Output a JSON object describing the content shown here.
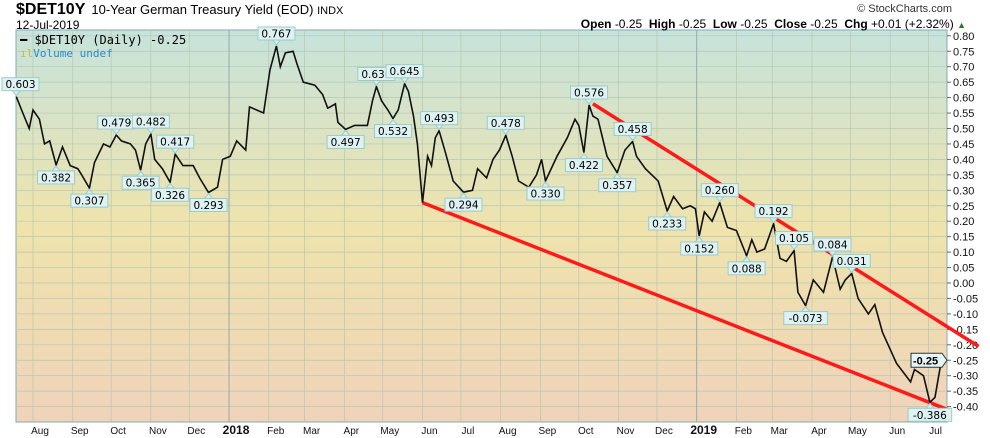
{
  "header": {
    "symbol": "$DET10Y",
    "description": "10-Year German Treasury Yield (EOD)",
    "exchange": "INDX",
    "date": "12-Jul-2019",
    "copyright": "© StockCharts.com",
    "open_label": "Open",
    "open": "-0.25",
    "high_label": "High",
    "high": "-0.25",
    "low_label": "Low",
    "low": "-0.25",
    "close_label": "Close",
    "close": "-0.25",
    "chg_label": "Chg",
    "chg": "+0.01 (+2.32%)",
    "chg_icon": "up-triangle-icon"
  },
  "legend": {
    "series": "$DET10Y (Daily) -0.25",
    "volume": "Volume undef"
  },
  "chart_data": {
    "type": "line",
    "title": "$DET10Y 10-Year German Treasury Yield (EOD)",
    "x_unit": "days since 2017-08-01",
    "xlim": [
      -13,
      713
    ],
    "ylim": [
      -0.42,
      0.82
    ],
    "y_ticks": [
      "0.80",
      "0.75",
      "0.70",
      "0.65",
      "0.60",
      "0.55",
      "0.50",
      "0.45",
      "0.40",
      "0.35",
      "0.30",
      "0.25",
      "0.20",
      "0.15",
      "0.10",
      "0.05",
      "0.00",
      "-0.05",
      "-0.10",
      "-0.15",
      "-0.20",
      "-0.25",
      "-0.30",
      "-0.35",
      "-0.40"
    ],
    "x_ticks": [
      {
        "d": 0,
        "label": "Aug"
      },
      {
        "d": 31,
        "label": "Sep"
      },
      {
        "d": 61,
        "label": "Oct"
      },
      {
        "d": 92,
        "label": "Nov"
      },
      {
        "d": 122,
        "label": "Dec"
      },
      {
        "d": 153,
        "label": "2018",
        "bold": true
      },
      {
        "d": 184,
        "label": "Feb"
      },
      {
        "d": 212,
        "label": "Mar"
      },
      {
        "d": 243,
        "label": "Apr"
      },
      {
        "d": 273,
        "label": "May"
      },
      {
        "d": 304,
        "label": "Jun"
      },
      {
        "d": 334,
        "label": "Jul"
      },
      {
        "d": 365,
        "label": "Aug"
      },
      {
        "d": 396,
        "label": "Sep"
      },
      {
        "d": 426,
        "label": "Oct"
      },
      {
        "d": 457,
        "label": "Nov"
      },
      {
        "d": 487,
        "label": "Dec"
      },
      {
        "d": 518,
        "label": "2019",
        "bold": true
      },
      {
        "d": 549,
        "label": "Feb"
      },
      {
        "d": 577,
        "label": "Mar"
      },
      {
        "d": 608,
        "label": "Apr"
      },
      {
        "d": 638,
        "label": "May"
      },
      {
        "d": 669,
        "label": "Jun"
      },
      {
        "d": 699,
        "label": "Jul"
      }
    ],
    "grid": true,
    "series": [
      {
        "name": "$DET10Y (Daily)",
        "color": "#000000",
        "points": [
          [
            -13,
            0.603
          ],
          [
            -8,
            0.55
          ],
          [
            -3,
            0.5
          ],
          [
            0,
            0.56
          ],
          [
            5,
            0.53
          ],
          [
            9,
            0.45
          ],
          [
            13,
            0.46
          ],
          [
            18,
            0.382
          ],
          [
            23,
            0.44
          ],
          [
            29,
            0.38
          ],
          [
            35,
            0.37
          ],
          [
            38,
            0.35
          ],
          [
            44,
            0.307
          ],
          [
            48,
            0.39
          ],
          [
            55,
            0.45
          ],
          [
            60,
            0.44
          ],
          [
            65,
            0.479
          ],
          [
            69,
            0.46
          ],
          [
            76,
            0.45
          ],
          [
            80,
            0.43
          ],
          [
            84,
            0.365
          ],
          [
            88,
            0.45
          ],
          [
            92,
            0.482
          ],
          [
            95,
            0.4
          ],
          [
            101,
            0.37
          ],
          [
            107,
            0.326
          ],
          [
            111,
            0.417
          ],
          [
            117,
            0.38
          ],
          [
            125,
            0.38
          ],
          [
            130,
            0.34
          ],
          [
            137,
            0.293
          ],
          [
            144,
            0.31
          ],
          [
            148,
            0.4
          ],
          [
            154,
            0.41
          ],
          [
            159,
            0.46
          ],
          [
            166,
            0.43
          ],
          [
            169,
            0.57
          ],
          [
            180,
            0.55
          ],
          [
            185,
            0.69
          ],
          [
            190,
            0.767
          ],
          [
            193,
            0.7
          ],
          [
            197,
            0.745
          ],
          [
            203,
            0.75
          ],
          [
            206,
            0.71
          ],
          [
            211,
            0.65
          ],
          [
            220,
            0.64
          ],
          [
            226,
            0.61
          ],
          [
            230,
            0.566
          ],
          [
            232,
            0.57
          ],
          [
            236,
            0.58
          ],
          [
            238,
            0.52
          ],
          [
            244,
            0.497
          ],
          [
            251,
            0.51
          ],
          [
            261,
            0.51
          ],
          [
            265,
            0.59
          ],
          [
            268,
            0.636
          ],
          [
            272,
            0.59
          ],
          [
            277,
            0.56
          ],
          [
            281,
            0.532
          ],
          [
            285,
            0.56
          ],
          [
            290,
            0.645
          ],
          [
            293,
            0.62
          ],
          [
            297,
            0.54
          ],
          [
            300,
            0.45
          ],
          [
            304,
            0.26
          ],
          [
            308,
            0.41
          ],
          [
            311,
            0.38
          ],
          [
            314,
            0.47
          ],
          [
            317,
            0.493
          ],
          [
            322,
            0.42
          ],
          [
            328,
            0.33
          ],
          [
            336,
            0.294
          ],
          [
            343,
            0.3
          ],
          [
            347,
            0.37
          ],
          [
            354,
            0.34
          ],
          [
            359,
            0.4
          ],
          [
            364,
            0.43
          ],
          [
            369,
            0.478
          ],
          [
            374,
            0.41
          ],
          [
            379,
            0.33
          ],
          [
            387,
            0.31
          ],
          [
            393,
            0.35
          ],
          [
            397,
            0.4
          ],
          [
            400,
            0.33
          ],
          [
            409,
            0.41
          ],
          [
            417,
            0.47
          ],
          [
            423,
            0.53
          ],
          [
            426,
            0.51
          ],
          [
            430,
            0.422
          ],
          [
            434,
            0.576
          ],
          [
            437,
            0.54
          ],
          [
            441,
            0.53
          ],
          [
            448,
            0.41
          ],
          [
            456,
            0.357
          ],
          [
            462,
            0.43
          ],
          [
            468,
            0.458
          ],
          [
            471,
            0.41
          ],
          [
            478,
            0.37
          ],
          [
            488,
            0.33
          ],
          [
            495,
            0.233
          ],
          [
            500,
            0.28
          ],
          [
            507,
            0.24
          ],
          [
            513,
            0.25
          ],
          [
            517,
            0.24
          ],
          [
            520,
            0.152
          ],
          [
            524,
            0.23
          ],
          [
            530,
            0.2
          ],
          [
            536,
            0.26
          ],
          [
            542,
            0.18
          ],
          [
            549,
            0.17
          ],
          [
            557,
            0.088
          ],
          [
            561,
            0.14
          ],
          [
            565,
            0.1
          ],
          [
            571,
            0.11
          ],
          [
            578,
            0.192
          ],
          [
            583,
            0.08
          ],
          [
            588,
            0.07
          ],
          [
            594,
            0.105
          ],
          [
            597,
            -0.03
          ],
          [
            603,
            -0.073
          ],
          [
            609,
            0.01
          ],
          [
            617,
            -0.03
          ],
          [
            624,
            0.084
          ],
          [
            630,
            -0.02
          ],
          [
            634,
            0.01
          ],
          [
            639,
            0.031
          ],
          [
            644,
            -0.05
          ],
          [
            652,
            -0.1
          ],
          [
            657,
            -0.07
          ],
          [
            663,
            -0.16
          ],
          [
            674,
            -0.26
          ],
          [
            685,
            -0.32
          ],
          [
            688,
            -0.28
          ],
          [
            695,
            -0.3
          ],
          [
            700,
            -0.386
          ],
          [
            704,
            -0.37
          ],
          [
            709,
            -0.25
          ]
        ]
      }
    ],
    "annotations": [
      {
        "d": -13,
        "v": 0.603,
        "text": "0.603",
        "pos": "above"
      },
      {
        "d": 18,
        "v": 0.382,
        "text": "0.382",
        "pos": "below"
      },
      {
        "d": 44,
        "v": 0.307,
        "text": "0.307",
        "pos": "below"
      },
      {
        "d": 65,
        "v": 0.479,
        "text": "0.479",
        "pos": "above"
      },
      {
        "d": 84,
        "v": 0.365,
        "text": "0.365",
        "pos": "below"
      },
      {
        "d": 92,
        "v": 0.482,
        "text": "0.482",
        "pos": "above"
      },
      {
        "d": 111,
        "v": 0.417,
        "text": "0.417",
        "pos": "above"
      },
      {
        "d": 107,
        "v": 0.326,
        "text": "0.326",
        "pos": "below"
      },
      {
        "d": 137,
        "v": 0.293,
        "text": "0.293",
        "pos": "below"
      },
      {
        "d": 190,
        "v": 0.767,
        "text": "0.767",
        "pos": "above"
      },
      {
        "d": 244,
        "v": 0.497,
        "text": "0.497",
        "pos": "below"
      },
      {
        "d": 268,
        "v": 0.636,
        "text": "0.636",
        "pos": "above"
      },
      {
        "d": 281,
        "v": 0.532,
        "text": "0.532",
        "pos": "below"
      },
      {
        "d": 290,
        "v": 0.645,
        "text": "0.645",
        "pos": "above"
      },
      {
        "d": 317,
        "v": 0.493,
        "text": "0.493",
        "pos": "above"
      },
      {
        "d": 336,
        "v": 0.294,
        "text": "0.294",
        "pos": "below"
      },
      {
        "d": 369,
        "v": 0.478,
        "text": "0.478",
        "pos": "above"
      },
      {
        "d": 400,
        "v": 0.33,
        "text": "0.330",
        "pos": "below"
      },
      {
        "d": 430,
        "v": 0.422,
        "text": "0.422",
        "pos": "below"
      },
      {
        "d": 434,
        "v": 0.576,
        "text": "0.576",
        "pos": "above"
      },
      {
        "d": 456,
        "v": 0.357,
        "text": "0.357",
        "pos": "below"
      },
      {
        "d": 468,
        "v": 0.458,
        "text": "0.458",
        "pos": "above"
      },
      {
        "d": 495,
        "v": 0.233,
        "text": "0.233",
        "pos": "below"
      },
      {
        "d": 536,
        "v": 0.26,
        "text": "0.260",
        "pos": "above"
      },
      {
        "d": 520,
        "v": 0.152,
        "text": "0.152",
        "pos": "below"
      },
      {
        "d": 557,
        "v": 0.088,
        "text": "0.088",
        "pos": "below"
      },
      {
        "d": 578,
        "v": 0.192,
        "text": "0.192",
        "pos": "above"
      },
      {
        "d": 594,
        "v": 0.105,
        "text": "0.105",
        "pos": "above"
      },
      {
        "d": 603,
        "v": -0.073,
        "text": "-0.073",
        "pos": "below"
      },
      {
        "d": 624,
        "v": 0.084,
        "text": "0.084",
        "pos": "above"
      },
      {
        "d": 639,
        "v": 0.031,
        "text": "0.031",
        "pos": "above"
      },
      {
        "d": 700,
        "v": -0.386,
        "text": "-0.386",
        "pos": "below"
      }
    ],
    "last_value": {
      "v": -0.25,
      "text": "-0.25"
    },
    "trendlines": [
      {
        "name": "lower-trendline",
        "color": "#ff1a1a",
        "from": [
          304,
          0.26
        ],
        "to": [
          714,
          -0.41
        ]
      },
      {
        "name": "upper-trendline",
        "color": "#ff1a1a",
        "from": [
          437,
          0.58
        ],
        "to": [
          738,
          -0.205
        ]
      }
    ]
  }
}
